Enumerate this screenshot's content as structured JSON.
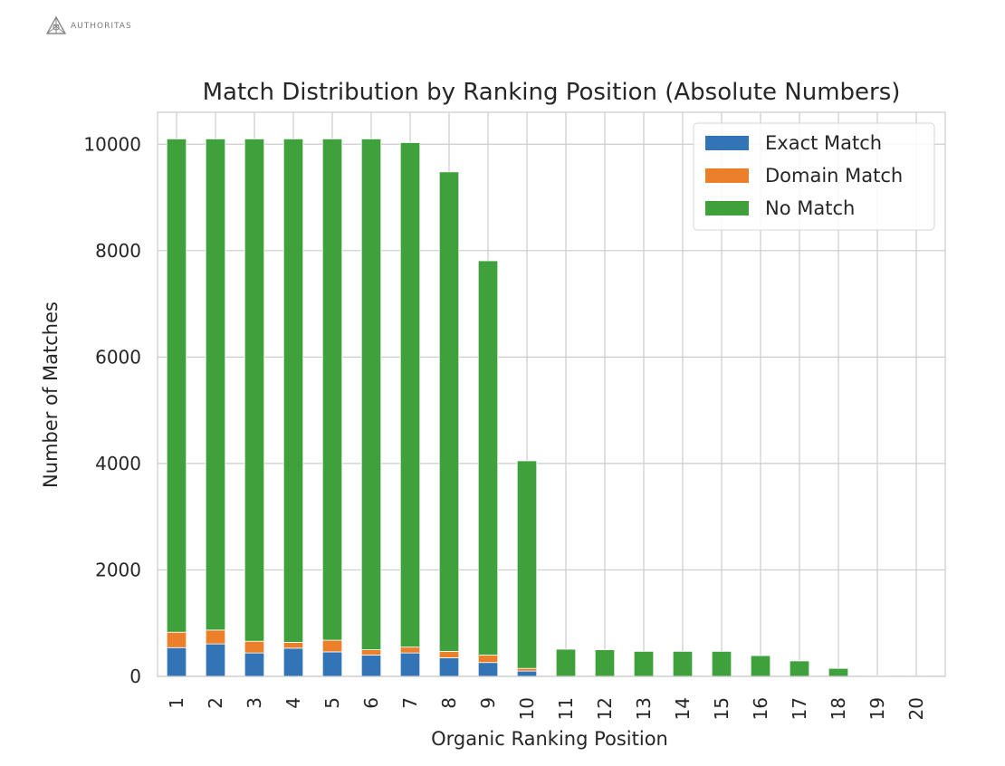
{
  "brand": {
    "name": "AUTHORITAS",
    "logo_icon": "authoritas-logo-icon"
  },
  "chart_data": {
    "type": "bar",
    "stacked": true,
    "title": "Match Distribution by Ranking Position (Absolute Numbers)",
    "xlabel": "Organic Ranking Position",
    "ylabel": "Number of Matches",
    "categories": [
      "1",
      "2",
      "3",
      "4",
      "5",
      "6",
      "7",
      "8",
      "9",
      "10",
      "11",
      "12",
      "13",
      "14",
      "15",
      "16",
      "17",
      "18",
      "19",
      "20"
    ],
    "ylim": [
      0,
      10600
    ],
    "yticks": [
      0,
      2000,
      4000,
      6000,
      8000,
      10000
    ],
    "grid": true,
    "legend_position": "top-right",
    "series": [
      {
        "name": "Exact Match",
        "color": "#3274b5",
        "values": [
          540,
          610,
          440,
          530,
          460,
          400,
          440,
          350,
          260,
          100,
          0,
          0,
          0,
          0,
          0,
          0,
          0,
          0,
          0,
          0
        ]
      },
      {
        "name": "Domain Match",
        "color": "#ec7f2a",
        "values": [
          290,
          260,
          220,
          110,
          220,
          100,
          110,
          120,
          140,
          50,
          0,
          0,
          0,
          0,
          0,
          0,
          0,
          0,
          0,
          0
        ]
      },
      {
        "name": "No Match",
        "color": "#3ea13b",
        "values": [
          9270,
          9230,
          9440,
          9460,
          9420,
          9600,
          9480,
          9010,
          7410,
          3900,
          510,
          500,
          470,
          470,
          470,
          390,
          290,
          150,
          10,
          5
        ]
      }
    ]
  }
}
